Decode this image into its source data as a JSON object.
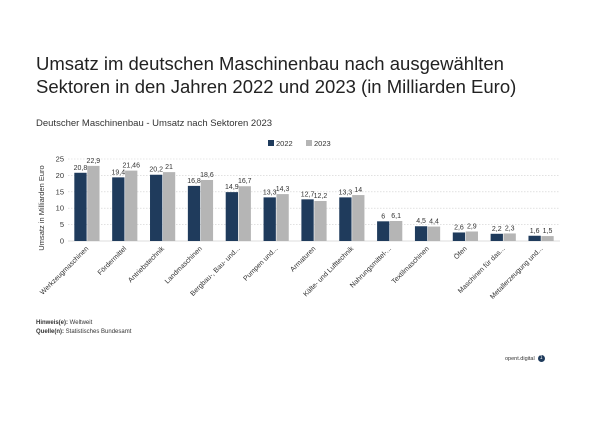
{
  "title": "Umsatz im deutschen Maschinenbau nach ausgewählten Sektoren in den Jahren 2022 und 2023 (in Milliarden Euro)",
  "subtitle": "Deutscher Maschinenbau - Umsatz nach Sektoren 2023",
  "footer": {
    "note_label": "Hinweis(e):",
    "note_text": " Weltweit",
    "source_label": "Quelle(n):",
    "source_text": " Statistisches Bundesamt"
  },
  "brand": {
    "name": "opent.digital",
    "mark": "1"
  },
  "chart_data": {
    "type": "bar",
    "title": "",
    "xlabel": "",
    "ylabel": "Umsatz in Milliarden Euro",
    "ylim": [
      0,
      25
    ],
    "yticks": [
      "0",
      "5",
      "10",
      "15",
      "20",
      "25"
    ],
    "grid": true,
    "legend_position": "top-center",
    "categories": [
      "Werkzeugmaschinen",
      "Fördermittel",
      "Antriebstechnik",
      "Landmaschinen",
      "Bergbau-, Bau- und...",
      "Pumpen und...",
      "Armaturen",
      "Kälte- und Lufttechnik",
      "Nahrungsmittel-...",
      "Textilmaschinen",
      "Öfen",
      "Maschinen für das...",
      "Metallerzeugung und..."
    ],
    "series": [
      {
        "name": "2022",
        "color": "#1f3b5c",
        "values": [
          20.8,
          19.4,
          20.2,
          16.8,
          14.9,
          13.3,
          12.7,
          13.3,
          6,
          4.5,
          2.6,
          2.2,
          1.6
        ],
        "labels": [
          "20,8",
          "19,4",
          "20,2",
          "16,8",
          "14,9",
          "13,3",
          "12,7",
          "13,3",
          "6",
          "4,5",
          "2,6",
          "2,2",
          "1,6"
        ]
      },
      {
        "name": "2023",
        "color": "#b5b5b5",
        "values": [
          22.9,
          21.46,
          21,
          18.6,
          16.7,
          14.3,
          12.2,
          14,
          6.1,
          4.4,
          2.9,
          2.3,
          1.5
        ],
        "labels": [
          "22,9",
          "21,46",
          "21",
          "18,6",
          "16,7",
          "14,3",
          "12,2",
          "14",
          "6,1",
          "4,4",
          "2,9",
          "2,3",
          "1,5"
        ]
      }
    ]
  }
}
